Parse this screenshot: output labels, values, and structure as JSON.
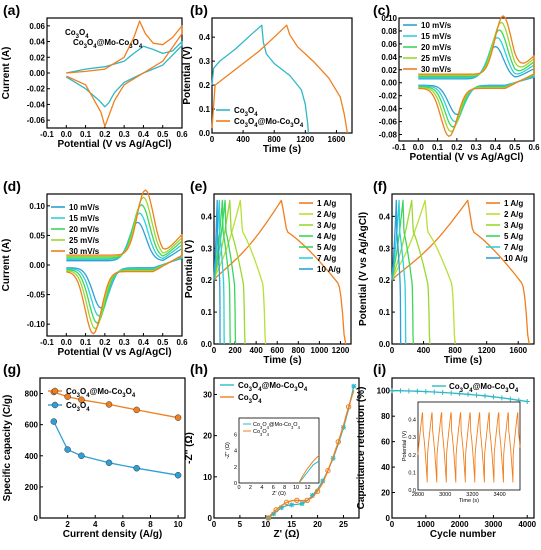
{
  "colors": {
    "orange": "#F07F1E",
    "teal": "#2FB8C4",
    "blue": "#2F9FD8",
    "cyan": "#2ED0DA",
    "green": "#3DD65B",
    "lime": "#9BD82C",
    "yellow_green": "#B8E036"
  },
  "chart_data": [
    {
      "panel": "(a)",
      "type": "line",
      "xlabel": "Potential (V vs Ag/AgCl)",
      "ylabel": "Current (A)",
      "xlim": [
        -0.1,
        0.6
      ],
      "ylim": [
        -0.07,
        0.07
      ],
      "xticks": [
        "-0.1",
        "0.0",
        "0.1",
        "0.2",
        "0.3",
        "0.4",
        "0.5",
        "0.6"
      ],
      "yticks": [
        "0.06",
        "0.04",
        "0.02",
        "0.00",
        "-0.02",
        "-0.04",
        "-0.06"
      ],
      "legend": [
        "Co3O4",
        "Co3O4@Mo-Co3O4"
      ],
      "series": [
        {
          "name": "Co3O4",
          "color": "teal",
          "x": [
            0.0,
            0.1,
            0.2,
            0.3,
            0.35,
            0.4,
            0.45,
            0.5,
            0.55,
            0.6,
            0.6,
            0.5,
            0.4,
            0.3,
            0.25,
            0.22,
            0.2,
            0.17,
            0.1,
            0.0
          ],
          "y": [
            0.0,
            0.005,
            0.008,
            0.015,
            0.025,
            0.034,
            0.03,
            0.025,
            0.028,
            0.04,
            0.035,
            0.01,
            0.0,
            -0.012,
            -0.025,
            -0.038,
            -0.043,
            -0.035,
            -0.02,
            -0.005
          ]
        },
        {
          "name": "Co3O4@Mo-Co3O4",
          "color": "orange",
          "x": [
            0.0,
            0.1,
            0.2,
            0.3,
            0.35,
            0.38,
            0.41,
            0.45,
            0.5,
            0.55,
            0.6,
            0.6,
            0.5,
            0.4,
            0.3,
            0.25,
            0.22,
            0.2,
            0.18,
            0.1,
            0.0
          ],
          "y": [
            0.0,
            0.002,
            0.005,
            0.02,
            0.045,
            0.066,
            0.05,
            0.038,
            0.036,
            0.045,
            0.06,
            0.05,
            0.015,
            0.0,
            -0.015,
            -0.035,
            -0.055,
            -0.068,
            -0.05,
            -0.015,
            -0.004
          ]
        }
      ]
    },
    {
      "panel": "(b)",
      "type": "line",
      "xlabel": "Time (s)",
      "ylabel": "Potential (V)",
      "xlim": [
        0,
        1800
      ],
      "ylim": [
        0,
        0.48
      ],
      "xticks": [
        "0",
        "400",
        "800",
        "1200",
        "1600"
      ],
      "yticks": [
        "0.0",
        "0.1",
        "0.2",
        "0.3",
        "0.4"
      ],
      "legend": [
        "Co3O4",
        "Co3O4@Mo-Co3O4"
      ],
      "series": [
        {
          "name": "Co3O4",
          "color": "teal",
          "x": [
            0,
            20,
            100,
            300,
            500,
            640,
            660,
            700,
            800,
            1000,
            1150,
            1200,
            1230,
            1240
          ],
          "y": [
            0.2,
            0.27,
            0.3,
            0.35,
            0.41,
            0.45,
            0.38,
            0.33,
            0.29,
            0.24,
            0.18,
            0.12,
            0.04,
            0.0
          ]
        },
        {
          "name": "Co3O4@Mo-Co3O4",
          "color": "orange",
          "x": [
            0,
            40,
            200,
            400,
            600,
            800,
            960,
            1000,
            1100,
            1300,
            1500,
            1650,
            1700,
            1730,
            1740
          ],
          "y": [
            0.02,
            0.2,
            0.24,
            0.29,
            0.34,
            0.4,
            0.45,
            0.41,
            0.36,
            0.3,
            0.23,
            0.15,
            0.08,
            0.02,
            0.0
          ]
        }
      ]
    },
    {
      "panel": "(c)",
      "type": "line",
      "xlabel": "Potential (V vs Ag/AgCl)",
      "ylabel": "",
      "xlim": [
        -0.1,
        0.6
      ],
      "ylim": [
        -0.09,
        0.1
      ],
      "xticks": [
        "-0.1",
        "0.0",
        "0.1",
        "0.2",
        "0.3",
        "0.4",
        "0.5",
        "0.6"
      ],
      "yticks": [
        "0.10",
        "0.08",
        "0.06",
        "0.04",
        "0.02",
        "0.00",
        "-0.02",
        "-0.04",
        "-0.06",
        "-0.08"
      ],
      "legend": [
        "10 mV/s",
        "15 mV/s",
        "20 mV/s",
        "25 mV/s",
        "30 mV/s"
      ],
      "series": [
        {
          "name": "10 mV/s",
          "color": "blue",
          "peak_anodic": 0.05,
          "peak_cathodic": -0.045,
          "anodic_x": 0.4,
          "cathodic_x": 0.2
        },
        {
          "name": "15 mV/s",
          "color": "cyan",
          "peak_anodic": 0.062,
          "peak_cathodic": -0.055,
          "anodic_x": 0.41,
          "cathodic_x": 0.19
        },
        {
          "name": "20 mV/s",
          "color": "green",
          "peak_anodic": 0.072,
          "peak_cathodic": -0.062,
          "anodic_x": 0.42,
          "cathodic_x": 0.18
        },
        {
          "name": "25 mV/s",
          "color": "lime",
          "peak_anodic": 0.082,
          "peak_cathodic": -0.068,
          "anodic_x": 0.43,
          "cathodic_x": 0.17
        },
        {
          "name": "30 mV/s",
          "color": "orange",
          "peak_anodic": 0.09,
          "peak_cathodic": -0.074,
          "anodic_x": 0.44,
          "cathodic_x": 0.16
        }
      ]
    },
    {
      "panel": "(d)",
      "type": "line",
      "xlabel": "Potential (V vs Ag/AgCl)",
      "ylabel": "Current (A)",
      "xlim": [
        -0.1,
        0.6
      ],
      "ylim": [
        -0.12,
        0.12
      ],
      "xticks": [
        "-0.1",
        "0.0",
        "0.1",
        "0.2",
        "0.3",
        "0.4",
        "0.5",
        "0.6"
      ],
      "yticks": [
        "0.10",
        "0.05",
        "0.00",
        "-0.05",
        "-0.10"
      ],
      "legend": [
        "10 mV/s",
        "15 mV/s",
        "20 mV/s",
        "25 mV/s",
        "30 mV/s"
      ],
      "series": [
        {
          "name": "10 mV/s",
          "color": "blue",
          "peak_anodic": 0.065,
          "peak_cathodic": -0.068,
          "anodic_x": 0.37,
          "cathodic_x": 0.18
        },
        {
          "name": "15 mV/s",
          "color": "cyan",
          "peak_anodic": 0.078,
          "peak_cathodic": -0.08,
          "anodic_x": 0.38,
          "cathodic_x": 0.17
        },
        {
          "name": "20 mV/s",
          "color": "green",
          "peak_anodic": 0.09,
          "peak_cathodic": -0.09,
          "anodic_x": 0.39,
          "cathodic_x": 0.16
        },
        {
          "name": "25 mV/s",
          "color": "lime",
          "peak_anodic": 0.1,
          "peak_cathodic": -0.098,
          "anodic_x": 0.4,
          "cathodic_x": 0.15
        },
        {
          "name": "30 mV/s",
          "color": "orange",
          "peak_anodic": 0.11,
          "peak_cathodic": -0.105,
          "anodic_x": 0.41,
          "cathodic_x": 0.14
        }
      ]
    },
    {
      "panel": "(e)",
      "type": "line",
      "xlabel": "Time (s)",
      "ylabel": "Potential (V)",
      "xlim": [
        0,
        1300
      ],
      "ylim": [
        0,
        0.47
      ],
      "xticks": [
        "0",
        "200",
        "400",
        "600",
        "800",
        "1000",
        "1200"
      ],
      "yticks": [
        "0.0",
        "0.1",
        "0.2",
        "0.3",
        "0.4"
      ],
      "legend": [
        "1 A/g",
        "2 A/g",
        "3 A/g",
        "4 A/g",
        "5 A/g",
        "7 A/g",
        "10 A/g"
      ],
      "series": [
        {
          "name": "1 A/g",
          "color": "orange",
          "t_charge": 640,
          "t_end": 1250
        },
        {
          "name": "2 A/g",
          "color": "yellow_green",
          "t_charge": 250,
          "t_end": 490
        },
        {
          "name": "3 A/g",
          "color": "lime",
          "t_charge": 150,
          "t_end": 295
        },
        {
          "name": "4 A/g",
          "color": "green",
          "t_charge": 105,
          "t_end": 205
        },
        {
          "name": "5 A/g",
          "color": "green",
          "t_charge": 80,
          "t_end": 155
        },
        {
          "name": "7 A/g",
          "color": "cyan",
          "t_charge": 50,
          "t_end": 97
        },
        {
          "name": "10 A/g",
          "color": "blue",
          "t_charge": 30,
          "t_end": 58
        }
      ]
    },
    {
      "panel": "(f)",
      "type": "line",
      "xlabel": "Time (s)",
      "ylabel": "Potential (V vs Ag/AgCl)",
      "xlim": [
        0,
        1800
      ],
      "ylim": [
        0,
        0.47
      ],
      "xticks": [
        "0",
        "400",
        "800",
        "1200",
        "1600"
      ],
      "yticks": [
        "0.0",
        "0.1",
        "0.2",
        "0.3",
        "0.4"
      ],
      "legend": [
        "1 A/g",
        "2 A/g",
        "3 A/g",
        "5 A/g",
        "7 A/g",
        "10 A/g"
      ],
      "series": [
        {
          "name": "1 A/g",
          "color": "orange",
          "t_charge": 960,
          "t_end": 1740
        },
        {
          "name": "2 A/g",
          "color": "yellow_green",
          "t_charge": 420,
          "t_end": 800
        },
        {
          "name": "3 A/g",
          "color": "lime",
          "t_charge": 250,
          "t_end": 480
        },
        {
          "name": "5 A/g",
          "color": "green",
          "t_charge": 140,
          "t_end": 270
        },
        {
          "name": "7 A/g",
          "color": "cyan",
          "t_charge": 90,
          "t_end": 175
        },
        {
          "name": "10 A/g",
          "color": "blue",
          "t_charge": 55,
          "t_end": 110
        }
      ]
    },
    {
      "panel": "(g)",
      "type": "line",
      "xlabel": "Current density (A/g)",
      "ylabel": "Specific capacity (C/g)",
      "xlim": [
        0,
        10.5
      ],
      "ylim": [
        0,
        900
      ],
      "xticks": [
        "2",
        "4",
        "6",
        "8",
        "10"
      ],
      "yticks": [
        "0",
        "200",
        "400",
        "600",
        "800"
      ],
      "series": [
        {
          "name": "Co3O4@Mo-Co3O4",
          "color": "orange",
          "x": [
            1,
            2,
            3,
            5,
            7,
            10
          ],
          "y": [
            810,
            780,
            760,
            730,
            695,
            645
          ]
        },
        {
          "name": "Co3O4",
          "color": "blue",
          "x": [
            1,
            2,
            3,
            5,
            7,
            10
          ],
          "y": [
            620,
            440,
            400,
            355,
            320,
            275
          ]
        }
      ]
    },
    {
      "panel": "(h)",
      "type": "line",
      "xlabel": "Z' (Ω)",
      "ylabel": "-Z'' (Ω)",
      "xlim": [
        0,
        28
      ],
      "ylim": [
        0,
        34
      ],
      "xticks": [
        "0",
        "5",
        "10",
        "15",
        "20",
        "25"
      ],
      "yticks": [
        "0",
        "10",
        "20",
        "30"
      ],
      "series": [
        {
          "name": "Co3O4@Mo-Co3O4",
          "color": "teal",
          "x": [
            10.5,
            11,
            11.5,
            12,
            13,
            14,
            15,
            16,
            17,
            18,
            19,
            20,
            21,
            22,
            23,
            24,
            25,
            26,
            27
          ],
          "y": [
            0,
            0.5,
            1.0,
            1.5,
            2.5,
            3.0,
            3.2,
            3.3,
            3.5,
            4.2,
            5.5,
            7.0,
            9.0,
            11.5,
            14.5,
            18.0,
            22.0,
            26.5,
            32
          ]
        },
        {
          "name": "Co3O4",
          "color": "orange",
          "x": [
            10.5,
            11,
            12,
            13,
            14,
            15,
            16,
            17,
            18,
            19,
            20,
            21,
            22,
            23,
            24,
            25,
            26,
            27
          ],
          "y": [
            0,
            0.8,
            2.0,
            3.0,
            3.8,
            4.2,
            4.3,
            4.2,
            4.3,
            5.0,
            6.5,
            8.5,
            11.5,
            14.8,
            18.5,
            22.5,
            27.0,
            31
          ]
        }
      ],
      "inset": {
        "xlim": [
          0,
          14
        ],
        "ylim": [
          0,
          8
        ],
        "xticks": [
          "0",
          "2",
          "4",
          "6",
          "8",
          "10",
          "12"
        ],
        "yticks": [
          "0",
          "2",
          "4",
          "6"
        ],
        "xlabel": "Z' (Ω)",
        "ylabel": "-Z'' (Ω)",
        "legend": [
          "Co3O4@Mo-Co3O4",
          "Co3O4"
        ]
      }
    },
    {
      "panel": "(i)",
      "type": "line",
      "xlabel": "Cycle number",
      "ylabel": "Capacitance retention (%)",
      "xlim": [
        0,
        4200
      ],
      "ylim": [
        0,
        110
      ],
      "xticks": [
        "0",
        "1000",
        "2000",
        "3000",
        "4000"
      ],
      "yticks": [
        "0",
        "20",
        "40",
        "60",
        "80",
        "100"
      ],
      "series": [
        {
          "name": "Co3O4@Mo-Co3O4",
          "color": "teal",
          "x": [
            0,
            250,
            500,
            750,
            1000,
            1250,
            1500,
            1750,
            2000,
            2250,
            2500,
            2750,
            3000,
            3250,
            3500,
            3750,
            4000
          ],
          "y": [
            100,
            100,
            99.8,
            99.6,
            99.3,
            99,
            98.6,
            98.2,
            97.7,
            97.2,
            96.6,
            96,
            95.2,
            94.4,
            93.5,
            92.5,
            91.5
          ]
        }
      ],
      "inset": {
        "xlim": [
          2800,
          3550
        ],
        "ylim": [
          0,
          0.5
        ],
        "xticks": [
          "2800",
          "3000",
          "3200",
          "3400"
        ],
        "yticks": [
          "0.0",
          "0.1",
          "0.2",
          "0.3",
          "0.4"
        ],
        "xlabel": "Time (s)",
        "ylabel": "Potential (V)"
      }
    }
  ],
  "labels": {
    "a": "(a)",
    "b": "(b)",
    "c": "(c)",
    "d": "(d)",
    "e": "(e)",
    "f": "(f)",
    "g": "(g)",
    "h": "(h)",
    "i": "(i)"
  }
}
